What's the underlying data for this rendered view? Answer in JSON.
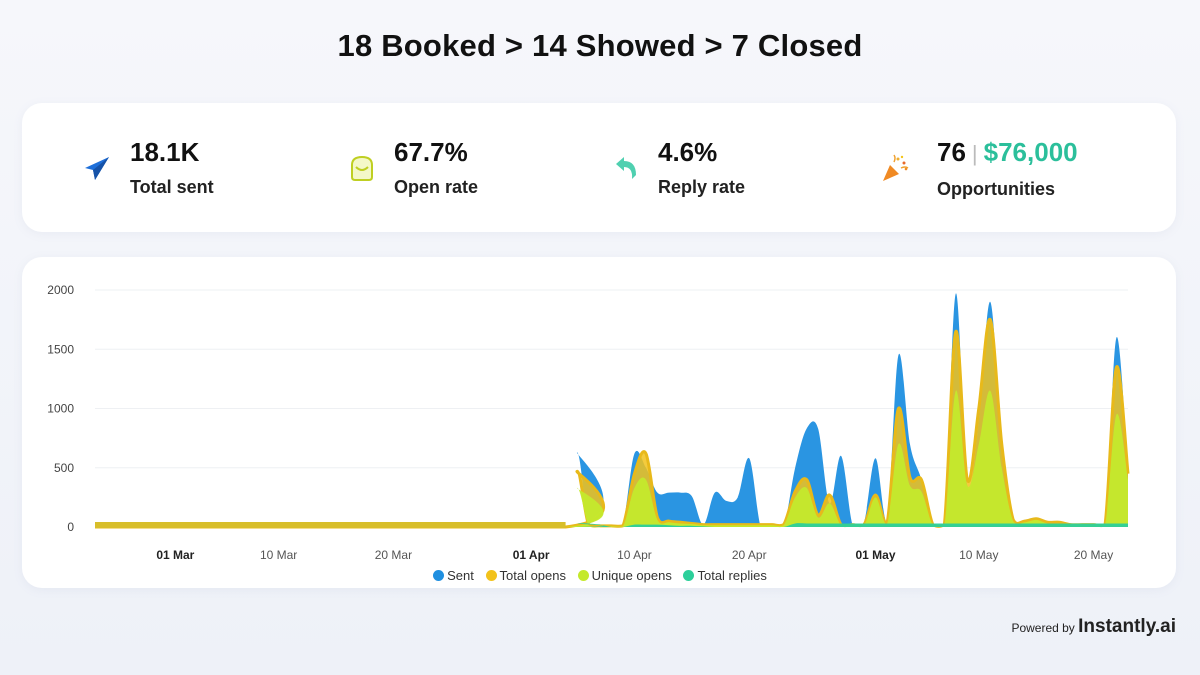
{
  "header": {
    "title": "18 Booked > 14 Showed > 7 Closed"
  },
  "stats": [
    {
      "icon": "paper-plane-icon",
      "value": "18.1K",
      "label": "Total sent",
      "color": "#1e6fd9"
    },
    {
      "icon": "envelope-open-icon",
      "value": "67.7%",
      "label": "Open rate",
      "color": "#c8d62e"
    },
    {
      "icon": "reply-arrow-icon",
      "value": "4.6%",
      "label": "Reply rate",
      "color": "#4fd0b0"
    },
    {
      "icon": "party-popper-icon",
      "value": "76",
      "value2": "$76,000",
      "label": "Opportunities",
      "color": "#f08a24"
    }
  ],
  "footer": {
    "powered_by": "Powered by",
    "brand": "Instantly.ai"
  },
  "chart_data": {
    "type": "area",
    "title": "",
    "xlabel": "",
    "ylabel": "",
    "ylim": [
      0,
      2000
    ],
    "yticks": [
      "0",
      "500",
      "1000",
      "1500",
      "2000"
    ],
    "ytick_values": [
      0,
      500,
      1000,
      1500,
      2000
    ],
    "xticks": [
      {
        "label": "01 Mar",
        "date": "Mar 1",
        "bold": true
      },
      {
        "label": "10 Mar",
        "date": "Mar 10",
        "bold": false
      },
      {
        "label": "20 Mar",
        "date": "Mar 20",
        "bold": false
      },
      {
        "label": "01 Apr",
        "date": "Apr 1",
        "bold": true
      },
      {
        "label": "10 Apr",
        "date": "Apr 10",
        "bold": false
      },
      {
        "label": "20 Apr",
        "date": "Apr 20",
        "bold": false
      },
      {
        "label": "01 May",
        "date": "May 1",
        "bold": true
      },
      {
        "label": "10 May",
        "date": "May 10",
        "bold": false
      },
      {
        "label": "20 May",
        "date": "May 20",
        "bold": false
      }
    ],
    "grid": true,
    "legend_position": "bottom",
    "x_range": [
      "Feb 22",
      "May 23"
    ],
    "x": [
      "Feb 22",
      "Apr 4",
      "Apr 5",
      "Apr 6",
      "Apr 7",
      "Apr 8",
      "Apr 9",
      "Apr 10",
      "Apr 11",
      "Apr 12",
      "Apr 13",
      "Apr 14",
      "Apr 15",
      "Apr 16",
      "Apr 17",
      "Apr 18",
      "Apr 19",
      "Apr 20",
      "Apr 21",
      "Apr 22",
      "Apr 23",
      "Apr 24",
      "Apr 25",
      "Apr 26",
      "Apr 27",
      "Apr 28",
      "Apr 29",
      "Apr 30",
      "May 1",
      "May 2",
      "May 3",
      "May 4",
      "May 5",
      "May 6",
      "May 7",
      "May 8",
      "May 9",
      "May 10",
      "May 11",
      "May 12",
      "May 13",
      "May 14",
      "May 15",
      "May 16",
      "May 17",
      "May 18",
      "May 19",
      "May 20",
      "May 21",
      "May 22",
      "May 23"
    ],
    "series": [
      {
        "name": "Sent",
        "color": "#1f8fe0",
        "values": [
          0,
          0,
          630,
          20,
          0,
          0,
          30,
          620,
          500,
          290,
          290,
          290,
          260,
          20,
          290,
          220,
          250,
          580,
          0,
          0,
          0,
          500,
          830,
          830,
          200,
          600,
          20,
          40,
          580,
          50,
          1450,
          700,
          400,
          0,
          20,
          1970,
          350,
          900,
          1900,
          700,
          60,
          60,
          80,
          50,
          50,
          30,
          20,
          20,
          20,
          1600,
          450
        ]
      },
      {
        "name": "Total opens",
        "color": "#f2c21b",
        "values": [
          0,
          0,
          470,
          20,
          10,
          10,
          10,
          450,
          620,
          80,
          50,
          40,
          30,
          20,
          20,
          20,
          20,
          20,
          20,
          20,
          20,
          300,
          400,
          100,
          270,
          20,
          20,
          20,
          270,
          30,
          1000,
          420,
          400,
          20,
          20,
          1650,
          400,
          1000,
          1750,
          700,
          60,
          50,
          70,
          40,
          40,
          20,
          20,
          20,
          20,
          1350,
          450
        ]
      },
      {
        "name": "Unique opens",
        "color": "#c4e92c",
        "values": [
          0,
          0,
          330,
          15,
          5,
          5,
          5,
          330,
          400,
          60,
          40,
          30,
          25,
          15,
          15,
          15,
          15,
          15,
          15,
          15,
          15,
          250,
          330,
          80,
          200,
          15,
          15,
          15,
          250,
          25,
          700,
          350,
          300,
          15,
          15,
          1150,
          350,
          700,
          1150,
          500,
          50,
          40,
          60,
          30,
          30,
          15,
          15,
          15,
          15,
          950,
          400
        ]
      },
      {
        "name": "Total replies",
        "color": "#2ccf9a",
        "values": [
          0,
          0,
          30,
          30,
          20,
          0,
          0,
          20,
          20,
          20,
          15,
          10,
          10,
          5,
          0,
          0,
          0,
          0,
          0,
          0,
          0,
          30,
          30,
          30,
          30,
          30,
          30,
          30,
          30,
          30,
          30,
          30,
          30,
          30,
          30,
          30,
          30,
          30,
          30,
          30,
          30,
          30,
          30,
          30,
          30,
          30,
          30,
          30,
          30,
          30,
          30
        ]
      }
    ]
  }
}
